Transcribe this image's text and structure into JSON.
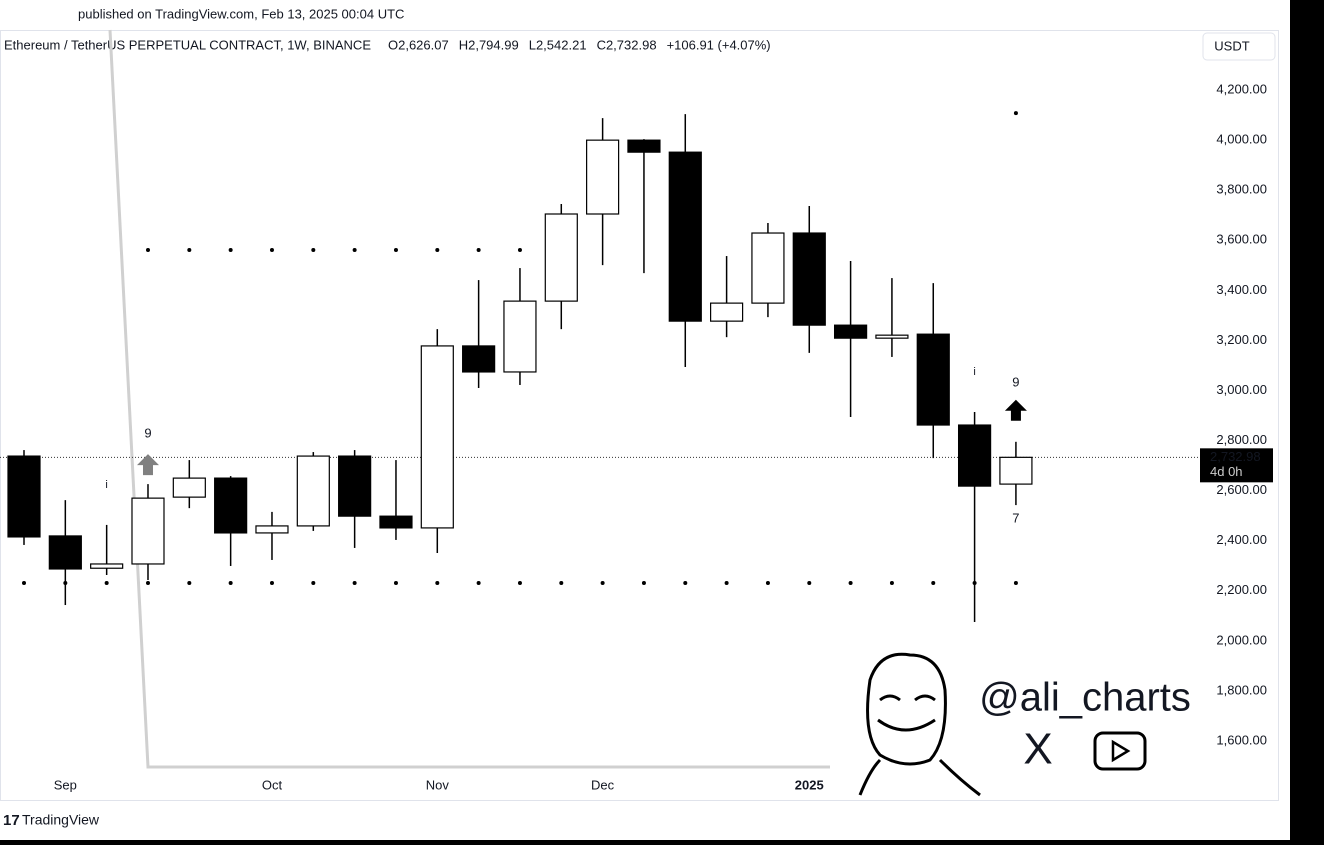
{
  "header": {
    "published": "published on TradingView.com, Feb 13, 2025 00:04 UTC",
    "brand": "TradingView",
    "watermark": "@ali_charts"
  },
  "chart_data": {
    "type": "candlestick",
    "title": "Ethereum / TetherUS PERPETUAL CONTRACT, 1W, BINANCE",
    "ohlc_legend": [
      "O2,626.07",
      "H2,794.99",
      "L2,542.21",
      "C2,732.98",
      "+106.91 (+4.07%)"
    ],
    "currency": "USDT",
    "price_label": "2,732.98",
    "countdown": "4d 0h",
    "categories": [
      null,
      "Sep",
      null,
      null,
      null,
      null,
      "Oct",
      null,
      null,
      null,
      "Nov",
      null,
      null,
      null,
      "Dec",
      null,
      null,
      null,
      null,
      "2025",
      null,
      null,
      null,
      null,
      null
    ],
    "open": [
      2738,
      2419,
      2290,
      2307,
      2574,
      2650,
      2431,
      2459,
      2738,
      2498,
      2451,
      3178,
      3074,
      3357,
      3705,
      4000,
      3952,
      3277,
      3349,
      3629,
      3261,
      3209,
      3225,
      2862,
      2626.07
    ],
    "high": [
      2762,
      2562,
      2463,
      2626,
      2722,
      2658,
      2515,
      2754,
      2762,
      2722,
      3245,
      3441,
      3489,
      3745,
      4088,
      4004,
      4104,
      3537,
      3669,
      3737,
      3517,
      3449,
      3429,
      2914,
      2794.99
    ],
    "low": [
      2383,
      2143,
      2263,
      2243,
      2530,
      2299,
      2323,
      2439,
      2371,
      2403,
      2351,
      3010,
      3022,
      3245,
      3501,
      3469,
      3094,
      3213,
      3293,
      3150,
      2894,
      3134,
      2730,
      2075,
      2542.21
    ],
    "close": [
      2415,
      2287,
      2307,
      2570,
      2650,
      2431,
      2459,
      2738,
      2498,
      2451,
      3178,
      3074,
      3357,
      3705,
      4000,
      3952,
      3277,
      3349,
      3629,
      3261,
      3209,
      3221,
      2862,
      2618,
      2732.98
    ],
    "up_color": "#ffffff",
    "down_color": "#000000",
    "levels": [
      {
        "value": 3561,
        "from": 3,
        "to": 12
      },
      {
        "value": 2231,
        "from": 0,
        "to": 24
      },
      {
        "value": 4108,
        "from": 24,
        "to": 24
      }
    ],
    "annotations": [
      {
        "text": "9",
        "index": 3,
        "color": "#e0514f",
        "position": "above"
      },
      {
        "text": "i",
        "index": 2,
        "color": "#f0a020",
        "position": "above"
      },
      {
        "text": "i",
        "index": 23,
        "color": "#f0a020",
        "position": "above"
      },
      {
        "text": "9",
        "index": 24,
        "color": "#e0514f",
        "position": "above"
      },
      {
        "text": "7",
        "index": 24,
        "color": "#e0514f",
        "position": "below"
      }
    ],
    "arrows": [
      {
        "index": 3,
        "color": "#808080"
      },
      {
        "index": 24,
        "color": "#000000"
      }
    ],
    "ylim": [
      1484,
      4440
    ],
    "yticks": [
      {
        "value": 1600,
        "label": "1,600.00"
      },
      {
        "value": 1800,
        "label": "1,800.00"
      },
      {
        "value": 2000,
        "label": "2,000.00"
      },
      {
        "value": 2200,
        "label": "2,200.00"
      },
      {
        "value": 2400,
        "label": "2,400.00"
      },
      {
        "value": 2600,
        "label": "2,600.00"
      },
      {
        "value": 2800,
        "label": "2,800.00"
      },
      {
        "value": 3000,
        "label": "3,000.00"
      },
      {
        "value": 3200,
        "label": "3,200.00"
      },
      {
        "value": 3400,
        "label": "3,400.00"
      },
      {
        "value": 3600,
        "label": "3,600.00"
      },
      {
        "value": 3800,
        "label": "3,800.00"
      },
      {
        "value": 4000,
        "label": "4,000.00"
      },
      {
        "value": 4200,
        "label": "4,200.00"
      }
    ]
  }
}
